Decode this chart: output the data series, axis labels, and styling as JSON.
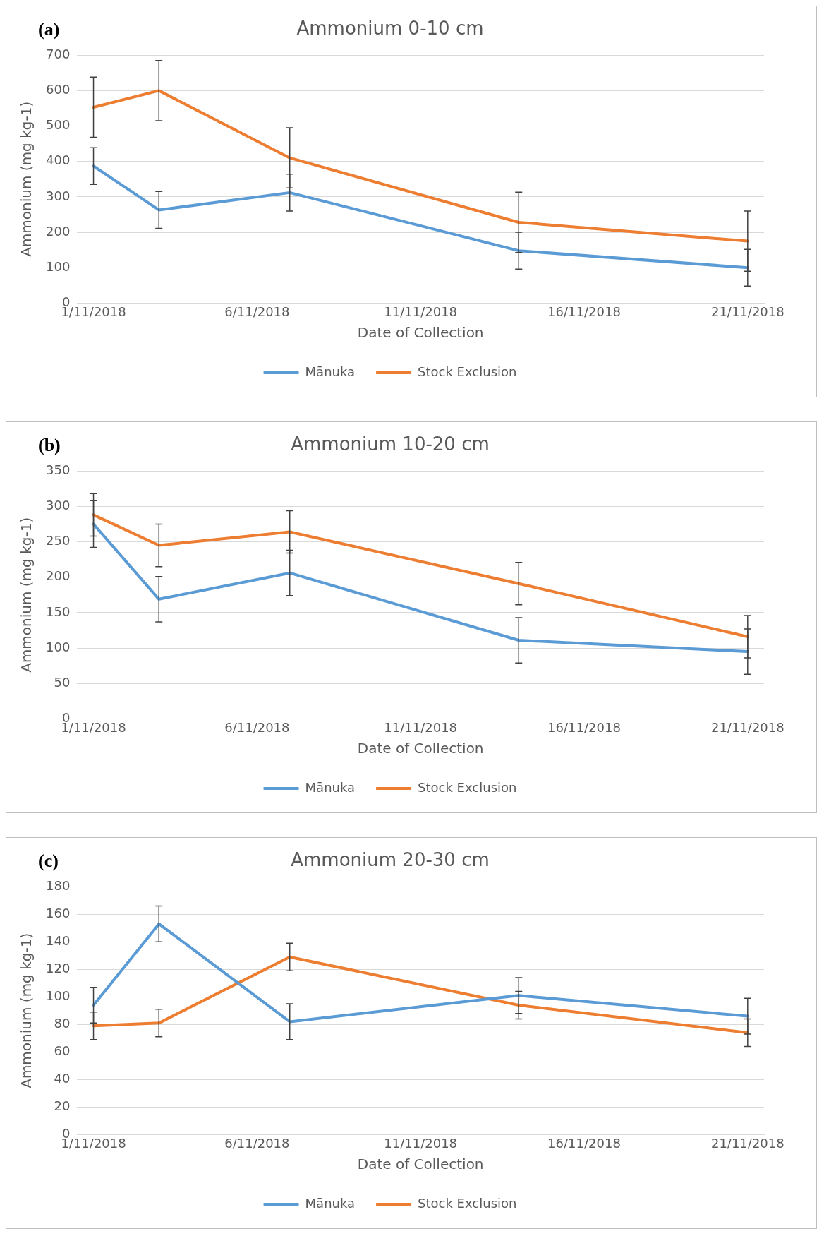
{
  "chart_data": [
    {
      "type": "line",
      "title": "Ammonium 0-10 cm",
      "xlabel": "Date of Collection",
      "ylabel": "Ammonium (mg kg-1)",
      "annotations": [
        "(a)"
      ],
      "x": [
        "2018-11-01",
        "2018-11-03",
        "2018-11-07",
        "2018-11-14",
        "2018-11-21"
      ],
      "series": [
        {
          "name": "Mānuka",
          "color": "#5b9bd5",
          "values": [
            387,
            263,
            312,
            148,
            100
          ],
          "errors": [
            52,
            52,
            52,
            52,
            52
          ]
        },
        {
          "name": "Stock Exclusion",
          "color": "#ed7d31",
          "values": [
            553,
            600,
            410,
            228,
            175
          ],
          "errors": [
            85,
            85,
            85,
            85,
            85
          ]
        }
      ],
      "xlim": [
        "2018-10-31T12:00",
        "2018-11-21T12:00"
      ],
      "xticks": [
        {
          "value": "2018-11-01",
          "label": "1/11/2018"
        },
        {
          "value": "2018-11-06",
          "label": "6/11/2018"
        },
        {
          "value": "2018-11-11",
          "label": "11/11/2018"
        },
        {
          "value": "2018-11-16",
          "label": "16/11/2018"
        },
        {
          "value": "2018-11-21",
          "label": "21/11/2018"
        }
      ],
      "ylim": [
        0,
        700
      ],
      "yticks": [
        0,
        100,
        200,
        300,
        400,
        500,
        600,
        700
      ],
      "grid": "y",
      "legend": "bottom",
      "marker": "none",
      "line_style": "solid"
    },
    {
      "type": "line",
      "title": "Ammonium 10-20 cm",
      "xlabel": "Date of Collection",
      "ylabel": "Ammonium (mg kg-1)",
      "annotations": [
        "(b)"
      ],
      "x": [
        "2018-11-01",
        "2018-11-03",
        "2018-11-07",
        "2018-11-14",
        "2018-11-21"
      ],
      "series": [
        {
          "name": "Mānuka",
          "color": "#5b9bd5",
          "values": [
            275,
            169,
            206,
            111,
            95
          ],
          "errors": [
            33,
            32,
            32,
            32,
            32
          ]
        },
        {
          "name": "Stock Exclusion",
          "color": "#ed7d31",
          "values": [
            288,
            245,
            264,
            191,
            116
          ],
          "errors": [
            30,
            30,
            30,
            30,
            30
          ]
        }
      ],
      "xlim": [
        "2018-10-31T12:00",
        "2018-11-21T12:00"
      ],
      "xticks": [
        {
          "value": "2018-11-01",
          "label": "1/11/2018"
        },
        {
          "value": "2018-11-06",
          "label": "6/11/2018"
        },
        {
          "value": "2018-11-11",
          "label": "11/11/2018"
        },
        {
          "value": "2018-11-16",
          "label": "16/11/2018"
        },
        {
          "value": "2018-11-21",
          "label": "21/11/2018"
        }
      ],
      "ylim": [
        0,
        350
      ],
      "yticks": [
        0,
        50,
        100,
        150,
        200,
        250,
        300,
        350
      ],
      "grid": "y",
      "legend": "bottom",
      "marker": "none",
      "line_style": "solid"
    },
    {
      "type": "line",
      "title": "Ammonium 20-30 cm",
      "xlabel": "Date of Collection",
      "ylabel": "Ammonium (mg kg-1)",
      "annotations": [
        "(c)"
      ],
      "x": [
        "2018-11-01",
        "2018-11-03",
        "2018-11-07",
        "2018-11-14",
        "2018-11-21"
      ],
      "series": [
        {
          "name": "Mānuka",
          "color": "#5b9bd5",
          "values": [
            94,
            153,
            82,
            101,
            86
          ],
          "errors": [
            13,
            13,
            13,
            13,
            13
          ]
        },
        {
          "name": "Stock Exclusion",
          "color": "#ed7d31",
          "values": [
            79,
            81,
            129,
            94,
            74
          ],
          "errors": [
            10,
            10,
            10,
            10,
            10
          ]
        }
      ],
      "xlim": [
        "2018-10-31T12:00",
        "2018-11-21T12:00"
      ],
      "xticks": [
        {
          "value": "2018-11-01",
          "label": "1/11/2018"
        },
        {
          "value": "2018-11-06",
          "label": "6/11/2018"
        },
        {
          "value": "2018-11-11",
          "label": "11/11/2018"
        },
        {
          "value": "2018-11-16",
          "label": "16/11/2018"
        },
        {
          "value": "2018-11-21",
          "label": "21/11/2018"
        }
      ],
      "ylim": [
        0,
        180
      ],
      "yticks": [
        0,
        20,
        40,
        60,
        80,
        100,
        120,
        140,
        160,
        180
      ],
      "grid": "y",
      "legend": "bottom",
      "marker": "none",
      "line_style": "solid"
    }
  ]
}
